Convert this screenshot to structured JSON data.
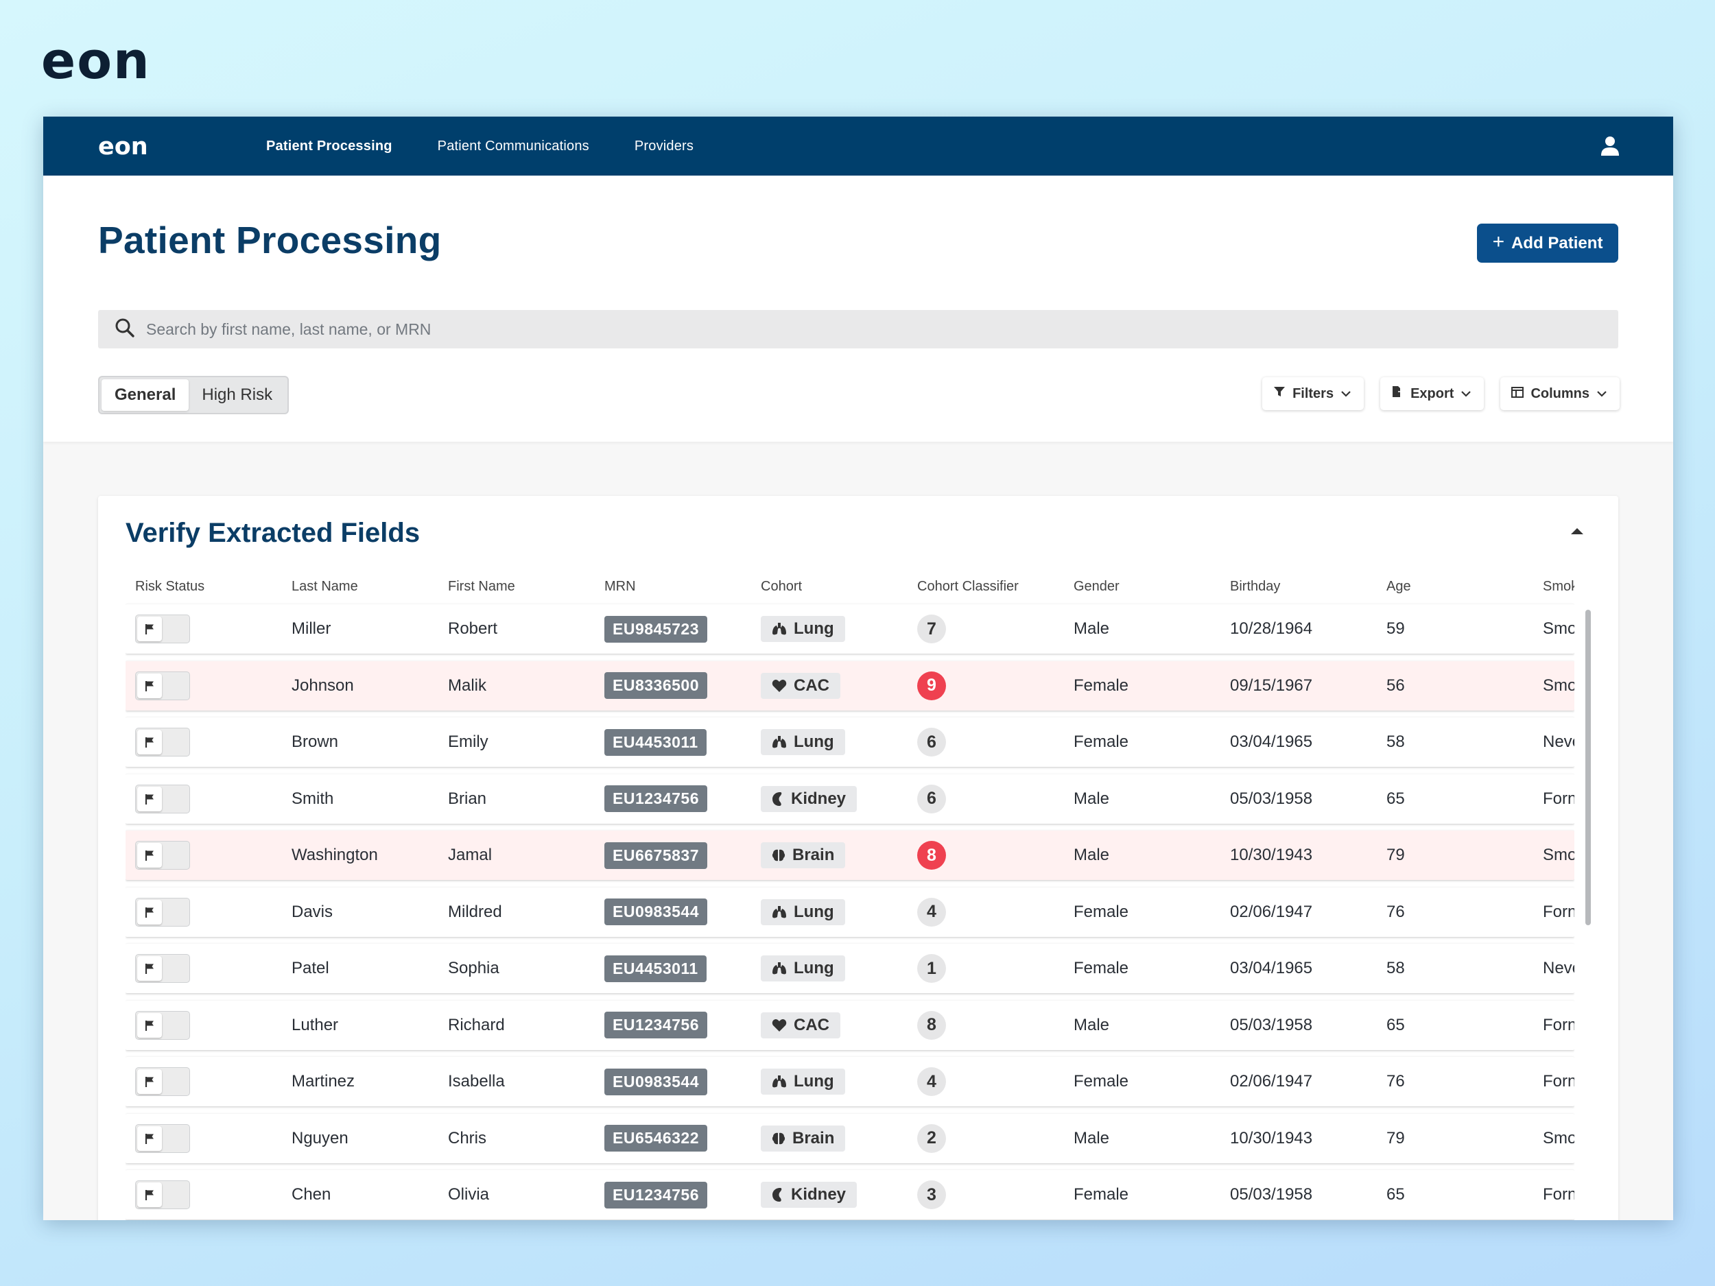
{
  "brand": {
    "name": "eon"
  },
  "nav": {
    "links": [
      {
        "label": "Patient Processing",
        "active": true
      },
      {
        "label": "Patient Communications",
        "active": false
      },
      {
        "label": "Providers",
        "active": false
      }
    ]
  },
  "page": {
    "title": "Patient Processing",
    "add_button": "Add Patient"
  },
  "search": {
    "placeholder": "Search by first name, last name, or MRN"
  },
  "segments": {
    "general": "General",
    "high_risk": "High Risk"
  },
  "tools": {
    "filters": "Filters",
    "export": "Export",
    "columns": "Columns"
  },
  "section": {
    "title": "Verify Extracted Fields"
  },
  "table": {
    "columns": [
      "Risk Status",
      "Last Name",
      "First Name",
      "MRN",
      "Cohort",
      "Cohort Classifier",
      "Gender",
      "Birthday",
      "Age",
      "Smok"
    ],
    "rows": [
      {
        "last": "Miller",
        "first": "Robert",
        "mrn": "EU9845723",
        "cohort": "Lung",
        "score": "7",
        "gender": "Male",
        "birthday": "10/28/1964",
        "age": "59",
        "smoke": "Smo",
        "high": false
      },
      {
        "last": "Johnson",
        "first": "Malik",
        "mrn": "EU8336500",
        "cohort": "CAC",
        "score": "9",
        "gender": "Female",
        "birthday": "09/15/1967",
        "age": "56",
        "smoke": "Smo",
        "high": true
      },
      {
        "last": "Brown",
        "first": "Emily",
        "mrn": "EU4453011",
        "cohort": "Lung",
        "score": "6",
        "gender": "Female",
        "birthday": "03/04/1965",
        "age": "58",
        "smoke": "Neve",
        "high": false
      },
      {
        "last": "Smith",
        "first": "Brian",
        "mrn": "EU1234756",
        "cohort": "Kidney",
        "score": "6",
        "gender": "Male",
        "birthday": "05/03/1958",
        "age": "65",
        "smoke": "Forn",
        "high": false
      },
      {
        "last": "Washington",
        "first": "Jamal",
        "mrn": "EU6675837",
        "cohort": "Brain",
        "score": "8",
        "gender": "Male",
        "birthday": "10/30/1943",
        "age": "79",
        "smoke": "Smo",
        "high": true
      },
      {
        "last": "Davis",
        "first": "Mildred",
        "mrn": "EU0983544",
        "cohort": "Lung",
        "score": "4",
        "gender": "Female",
        "birthday": "02/06/1947",
        "age": "76",
        "smoke": "Forn",
        "high": false
      },
      {
        "last": "Patel",
        "first": "Sophia",
        "mrn": "EU4453011",
        "cohort": "Lung",
        "score": "1",
        "gender": "Female",
        "birthday": "03/04/1965",
        "age": "58",
        "smoke": "Neve",
        "high": false
      },
      {
        "last": "Luther",
        "first": "Richard",
        "mrn": "EU1234756",
        "cohort": "CAC",
        "score": "8",
        "gender": "Male",
        "birthday": "05/03/1958",
        "age": "65",
        "smoke": "Forn",
        "high": false
      },
      {
        "last": "Martinez",
        "first": "Isabella",
        "mrn": "EU0983544",
        "cohort": "Lung",
        "score": "4",
        "gender": "Female",
        "birthday": "02/06/1947",
        "age": "76",
        "smoke": "Forn",
        "high": false
      },
      {
        "last": "Nguyen",
        "first": "Chris",
        "mrn": "EU6546322",
        "cohort": "Brain",
        "score": "2",
        "gender": "Male",
        "birthday": "10/30/1943",
        "age": "79",
        "smoke": "Smo",
        "high": false
      },
      {
        "last": "Chen",
        "first": "Olivia",
        "mrn": "EU1234756",
        "cohort": "Kidney",
        "score": "3",
        "gender": "Female",
        "birthday": "05/03/1958",
        "age": "65",
        "smoke": "Forn",
        "high": false
      }
    ]
  },
  "icons": {
    "lung": "lungs-icon",
    "cac": "heart-icon",
    "kidney": "kidney-icon",
    "brain": "brain-icon",
    "flag": "flag-icon",
    "user": "user-icon",
    "search": "search-icon"
  },
  "colors": {
    "nav": "#003f6c",
    "accent": "#0b4f8c",
    "title": "#0b3d66",
    "high_risk": "#ef4150",
    "high_row": "#fff1f1"
  }
}
